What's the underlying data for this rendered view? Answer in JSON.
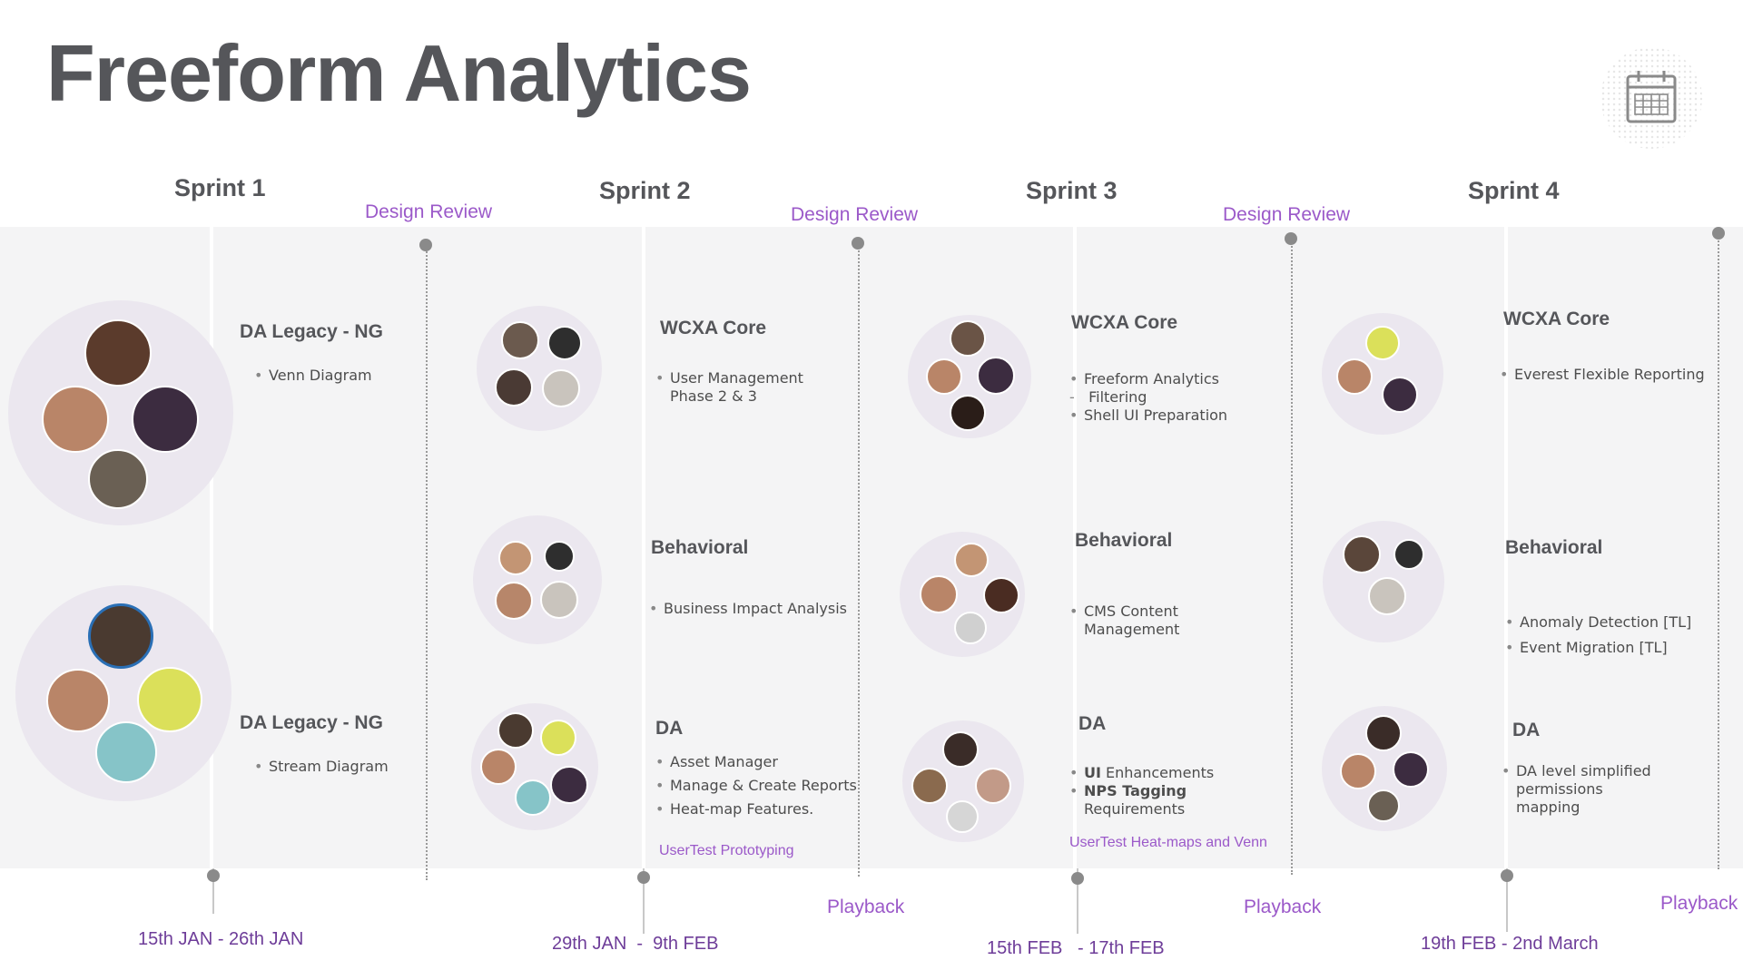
{
  "title": "Freeform Analytics",
  "sprints": [
    {
      "label": "Sprint 1",
      "date": "15th JAN - 26th JAN"
    },
    {
      "label": "Sprint 2",
      "date": "29th JAN  -  9th FEB"
    },
    {
      "label": "Sprint 3",
      "date": "15th FEB   - 17th FEB"
    },
    {
      "label": "Sprint 4",
      "date": "19th FEB - 2nd March"
    }
  ],
  "milestones": {
    "design_review": "Design Review",
    "playback": "Playback"
  },
  "cells": {
    "s1_a": {
      "heading": "DA Legacy - NG",
      "items": [
        "Venn Diagram"
      ]
    },
    "s1_b": {
      "heading": "DA Legacy - NG",
      "items": [
        "Stream Diagram"
      ]
    },
    "s2_a": {
      "heading": "WCXA Core",
      "items": [
        "User Management Phase 2 & 3"
      ]
    },
    "s2_b": {
      "heading": "Behavioral",
      "items": [
        "Business Impact Analysis"
      ]
    },
    "s2_c": {
      "heading": "DA",
      "items": [
        "Asset Manager",
        "Manage & Create Reports",
        "Heat-map Features."
      ],
      "link": "UserTest Prototyping"
    },
    "s3_a": {
      "heading": "WCXA Core",
      "items": [
        "Freeform Analytics",
        "Filtering",
        "Shell UI Preparation"
      ]
    },
    "s3_b": {
      "heading": "Behavioral",
      "items": [
        "CMS Content Management"
      ]
    },
    "s3_c": {
      "heading": "DA",
      "items_rich": [
        [
          "UI",
          " Enhancements"
        ],
        [
          "NPS Tagging",
          " Requirements"
        ]
      ],
      "link": "UserTest Heat-maps and Venn"
    },
    "s4_a": {
      "heading": "WCXA Core",
      "items": [
        "Everest Flexible Reporting"
      ]
    },
    "s4_b": {
      "heading": "Behavioral",
      "items": [
        "Anomaly Detection [TL]",
        "Event Migration [TL]"
      ]
    },
    "s4_c": {
      "heading": "DA",
      "items": [
        "DA level simplified permissions mapping"
      ]
    }
  },
  "icons": {
    "calendar": "calendar-icon",
    "avatar": "avatar"
  },
  "colors": {
    "accent": "#9b59c9",
    "date": "#6e3d99",
    "heading": "#55565a",
    "band": "#f4f4f5"
  }
}
